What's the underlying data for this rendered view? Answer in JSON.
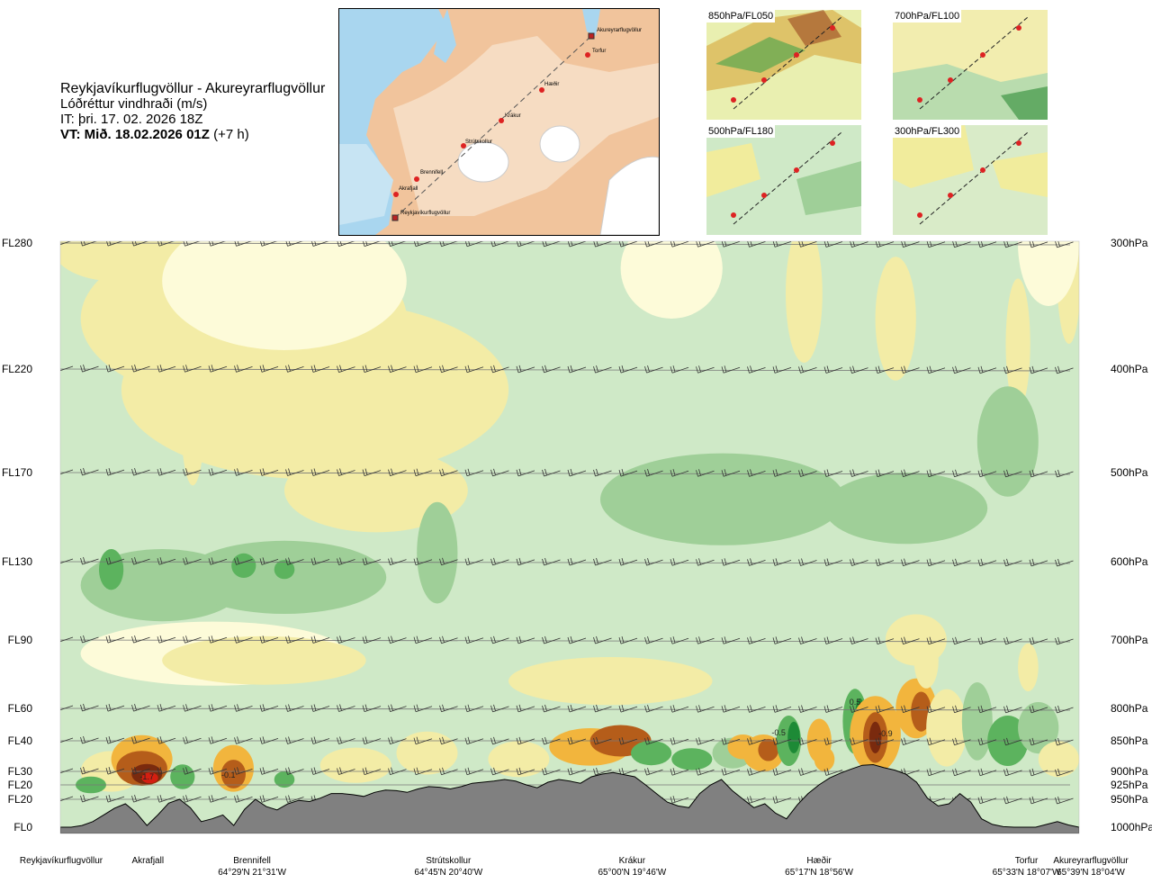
{
  "header": {
    "title": "Reykjavíkurflugvöllur - Akureyrarflugvöllur",
    "subtitle": "Lóðréttur vindhraði (m/s)",
    "it": "IT: þri. 17. 02. 2026 18Z",
    "vt": "VT: Mið. 18.02.2026 01Z",
    "vt_offset": "(+7 h)"
  },
  "map": {
    "places": [
      "Akureyrarflugvöllur",
      "Torfur",
      "Hæðir",
      "Krákur",
      "Strútskollur",
      "Brennifell",
      "Akrafjall",
      "Reykjavíkurflugvöllur"
    ]
  },
  "panels": [
    {
      "label": "850hPa/FL050"
    },
    {
      "label": "700hPa/FL100"
    },
    {
      "label": "500hPa/FL180"
    },
    {
      "label": "300hPa/FL300"
    }
  ],
  "colors": {
    "bg": "#cfe9c7",
    "yellow": "#f3eca6",
    "pale": "#fdfbd9",
    "green2": "#9fcf98",
    "green3": "#5cb35e",
    "green4": "#1d8a36",
    "orange": "#f2b53d",
    "brown": "#b55d1a",
    "dark": "#7a2a0e",
    "red": "#d31f11",
    "terrain": "#808080"
  },
  "chart_data": {
    "type": "heatmap",
    "title": "Lóðréttur vindhraði (m/s)",
    "y_flight_levels": [
      {
        "label": "FL280",
        "pressure": 300
      },
      {
        "label": "FL220",
        "pressure": 400
      },
      {
        "label": "FL170",
        "pressure": 500
      },
      {
        "label": "FL130",
        "pressure": 600
      },
      {
        "label": "FL90",
        "pressure": 700
      },
      {
        "label": "FL60",
        "pressure": 800
      },
      {
        "label": "FL40",
        "pressure": 850
      },
      {
        "label": "FL30",
        "pressure": 900
      },
      {
        "label": "FL20",
        "pressure": 925
      },
      {
        "label": "FL20",
        "pressure": 950
      },
      {
        "label": "FL0",
        "pressure": 1000
      }
    ],
    "pressure_labels": [
      "300hPa",
      "400hPa",
      "500hPa",
      "600hPa",
      "700hPa",
      "800hPa",
      "850hPa",
      "900hPa",
      "925hPa",
      "950hPa",
      "1000hPa"
    ],
    "x_waypoints": [
      {
        "name": "Reykjavíkurflugvöllur",
        "coord": "",
        "dist": 0
      },
      {
        "name": "Akrafjall",
        "coord": "",
        "dist": 0.093
      },
      {
        "name": "Brennifell",
        "coord": "64°29'N 21°31'W",
        "dist": 0.19
      },
      {
        "name": "Strútskollur",
        "coord": "64°45'N 20°40'W",
        "dist": 0.381
      },
      {
        "name": "Krákur",
        "coord": "65°00'N 19°46'W",
        "dist": 0.563
      },
      {
        "name": "Hæðir",
        "coord": "65°17'N 18°56'W",
        "dist": 0.758
      },
      {
        "name": "Torfur",
        "coord": "65°33'N 18°07'W",
        "dist": 0.951
      },
      {
        "name": "Akureyrarflugvöllur",
        "coord": "65°39'N 18°04'W",
        "dist": 1.0
      }
    ],
    "annotations": [
      "-1.7",
      "-0.1",
      "0.5",
      "-0.5",
      "-0.9"
    ],
    "terrain_pressure": [
      1000,
      1000,
      997,
      990,
      978,
      966,
      958,
      974,
      997,
      978,
      957,
      950,
      965,
      990,
      985,
      978,
      997,
      968,
      950,
      963,
      969,
      958,
      952,
      954,
      948,
      940,
      940,
      942,
      945,
      938,
      934,
      935,
      938,
      932,
      928,
      929,
      932,
      928,
      922,
      920,
      918,
      915,
      918,
      925,
      930,
      920,
      915,
      918,
      922,
      910,
      905,
      902,
      906,
      910,
      925,
      940,
      955,
      962,
      965,
      940,
      925,
      915,
      935,
      950,
      965,
      958,
      975,
      985,
      960,
      940,
      925,
      912,
      903,
      896,
      890,
      889,
      894,
      898,
      905,
      920,
      948,
      962,
      958,
      940,
      955,
      985,
      995,
      999,
      1000,
      1000,
      1000,
      995,
      990,
      996,
      1000
    ]
  }
}
